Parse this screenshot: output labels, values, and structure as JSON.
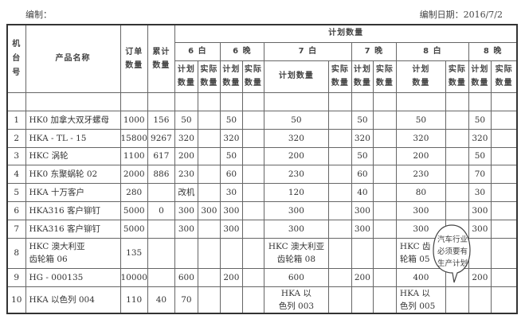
{
  "header": {
    "editor_label": "编制：",
    "date_label": "编制日期：2016/7/2"
  },
  "columns": {
    "machine": "机台号",
    "product": "产品名称",
    "order_qty": "订单数量",
    "cum_qty": "累计数量",
    "plan_group": "计划数量",
    "shifts": [
      "6 白",
      "6 晚",
      "7 白",
      "7 晚",
      "8 白",
      "8 晚"
    ],
    "plan": "计划数量",
    "actual": "实际数量"
  },
  "rows": [
    {
      "no": "1",
      "name": "HK0 加拿大双牙螺母",
      "order": "1000",
      "cum": "156",
      "v": [
        "50",
        "",
        "50",
        "",
        "50",
        "",
        "50",
        "",
        "50",
        "",
        "50",
        ""
      ]
    },
    {
      "no": "2",
      "name": "HKA - TL - 15",
      "order": "15800",
      "cum": "9267",
      "v": [
        "320",
        "",
        "320",
        "",
        "320",
        "",
        "320",
        "",
        "320",
        "",
        "320",
        ""
      ]
    },
    {
      "no": "3",
      "name": "HKC 涡轮",
      "order": "1100",
      "cum": "617",
      "v": [
        "200",
        "",
        "50",
        "",
        "200",
        "",
        "50",
        "",
        "200",
        "",
        "50",
        ""
      ]
    },
    {
      "no": "4",
      "name": "HK0 东聚蜗轮 02",
      "order": "2000",
      "cum": "886",
      "v": [
        "230",
        "",
        "60",
        "",
        "230",
        "",
        "60",
        "",
        "230",
        "",
        "70",
        ""
      ]
    },
    {
      "no": "5",
      "name": "HKA 十万客户",
      "order": "280",
      "cum": "",
      "v": [
        "改机",
        "",
        "30",
        "",
        "120",
        "",
        "40",
        "",
        "80",
        "",
        "30",
        ""
      ]
    },
    {
      "no": "6",
      "name": "HKA316 客户铆钉",
      "order": "5000",
      "cum": "0",
      "v": [
        "300",
        "300",
        "300",
        "",
        "300",
        "",
        "300",
        "",
        "300",
        "",
        "300",
        ""
      ]
    },
    {
      "no": "7",
      "name": "HKA316 客户铆钉",
      "order": "5000",
      "cum": "",
      "v": [
        "300",
        "",
        "300",
        "",
        "300",
        "",
        "300",
        "",
        "300",
        "",
        "300",
        ""
      ]
    },
    {
      "no": "8",
      "name": "HKC 澳大利亚\n齿轮箱 06",
      "order": "135",
      "cum": "",
      "v": [
        "",
        "",
        "",
        "",
        "HKC 澳大利亚\n齿轮箱 08",
        "",
        "",
        "",
        "HKC 齿\n轮箱 05",
        "",
        "",
        ""
      ]
    },
    {
      "no": "9",
      "name": "HG - 000135",
      "order": "10000",
      "cum": "",
      "v": [
        "600",
        "",
        "200",
        "",
        "600",
        "",
        "200",
        "",
        "400",
        "",
        "200",
        ""
      ]
    },
    {
      "no": "10",
      "name": "HKA 以色列 004",
      "order": "110",
      "cum": "40",
      "v": [
        "70",
        "",
        "",
        "",
        "HKA 以\n色列 003",
        "",
        "",
        "",
        "HKA 以\n色列 005",
        "",
        "",
        ""
      ]
    }
  ],
  "callout": {
    "text": "汽车行业必须要有生产计划"
  }
}
